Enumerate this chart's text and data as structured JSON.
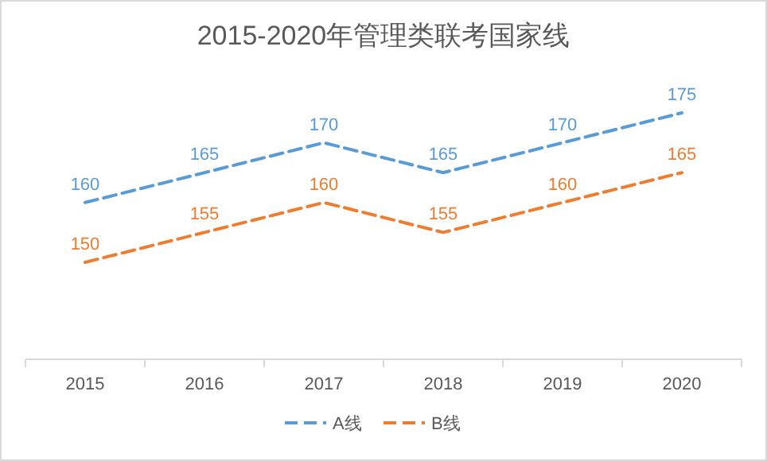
{
  "chart_data": {
    "type": "line",
    "title": "2015-2020年管理类联考国家线",
    "categories": [
      "2015",
      "2016",
      "2017",
      "2018",
      "2019",
      "2020"
    ],
    "series": [
      {
        "name": "A线",
        "color": "#5b9bd5",
        "values": [
          160,
          165,
          170,
          165,
          170,
          175
        ]
      },
      {
        "name": "B线",
        "color": "#ed7d31",
        "values": [
          150,
          155,
          160,
          155,
          160,
          165
        ]
      }
    ],
    "data_labels": true,
    "line_style": "dashed",
    "marker": "none",
    "legend": "bottom",
    "grid": false
  }
}
